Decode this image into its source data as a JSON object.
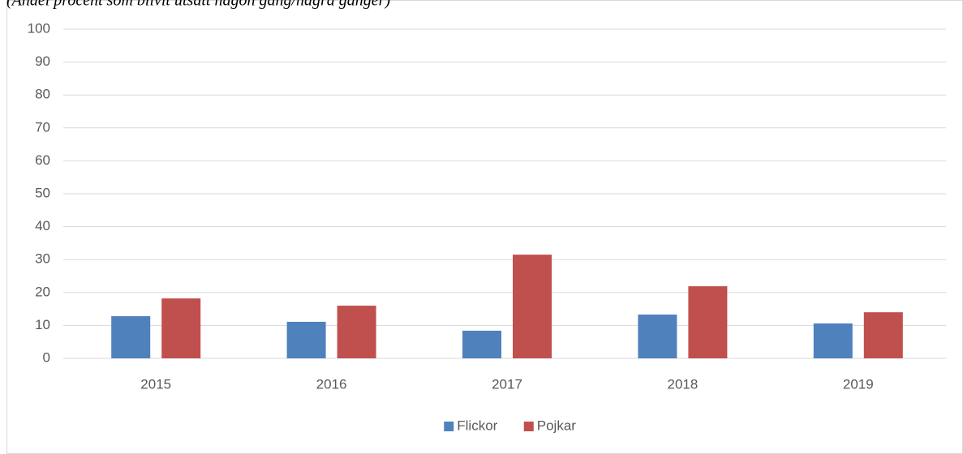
{
  "chart_data": {
    "type": "bar",
    "title": "(Andel procent som blivit utsatt någon gång/några gånger)",
    "categories": [
      "2015",
      "2016",
      "2017",
      "2018",
      "2019"
    ],
    "series": [
      {
        "name": "Flickor",
        "color": "#4f81bd",
        "values": [
          12.8,
          11.1,
          8.4,
          13.3,
          10.6
        ]
      },
      {
        "name": "Pojkar",
        "color": "#c0504d",
        "values": [
          18.2,
          16.0,
          31.5,
          21.9,
          14.0
        ]
      }
    ],
    "ylim": [
      0,
      100
    ],
    "yticks": [
      0,
      10,
      20,
      30,
      40,
      50,
      60,
      70,
      80,
      90,
      100
    ],
    "grid": true,
    "legend": "bottom"
  }
}
